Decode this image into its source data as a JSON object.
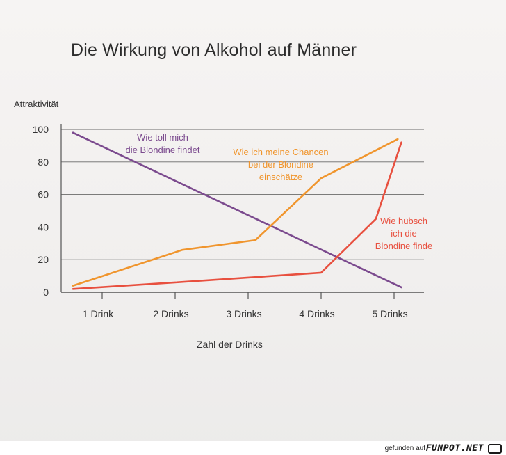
{
  "chart_data": {
    "type": "line",
    "title": "Die Wirkung von Alkohol auf Männer",
    "ylabel": "Attraktivität",
    "xlabel": "Zahl der Drinks",
    "categories": [
      "1 Drink",
      "2 Drinks",
      "3 Drinks",
      "4 Drinks",
      "5 Drinks"
    ],
    "yticks": [
      "0",
      "20",
      "40",
      "60",
      "80",
      "100"
    ],
    "ylim": [
      0,
      100
    ],
    "grid": "horizontal",
    "series": [
      {
        "name": "Wie toll mich die Blondine findet",
        "label_lines": [
          "Wie toll mich",
          "die Blondine findet"
        ],
        "color": "#7b4a8e",
        "x": [
          0.6,
          5.1
        ],
        "values": [
          98,
          3
        ]
      },
      {
        "name": "Wie ich meine Chancen bei der Blondine einschätze",
        "label_lines": [
          "Wie ich meine Chancen",
          "bei der Blondine",
          "einschätze"
        ],
        "color": "#f0952d",
        "x": [
          0.6,
          2.1,
          3.1,
          4.0,
          5.05
        ],
        "values": [
          4,
          26,
          32,
          70,
          94
        ]
      },
      {
        "name": "Wie hübsch ich die Blondine finde",
        "label_lines": [
          "Wie hübsch",
          "ich die",
          "Blondine finde"
        ],
        "color": "#e8503f",
        "x": [
          0.6,
          2.0,
          3.0,
          4.0,
          4.75,
          5.1
        ],
        "values": [
          2,
          6,
          9,
          12,
          45,
          92
        ]
      }
    ]
  },
  "footer": {
    "text": "gefunden auf",
    "logo": "FUNPOT.NET"
  }
}
